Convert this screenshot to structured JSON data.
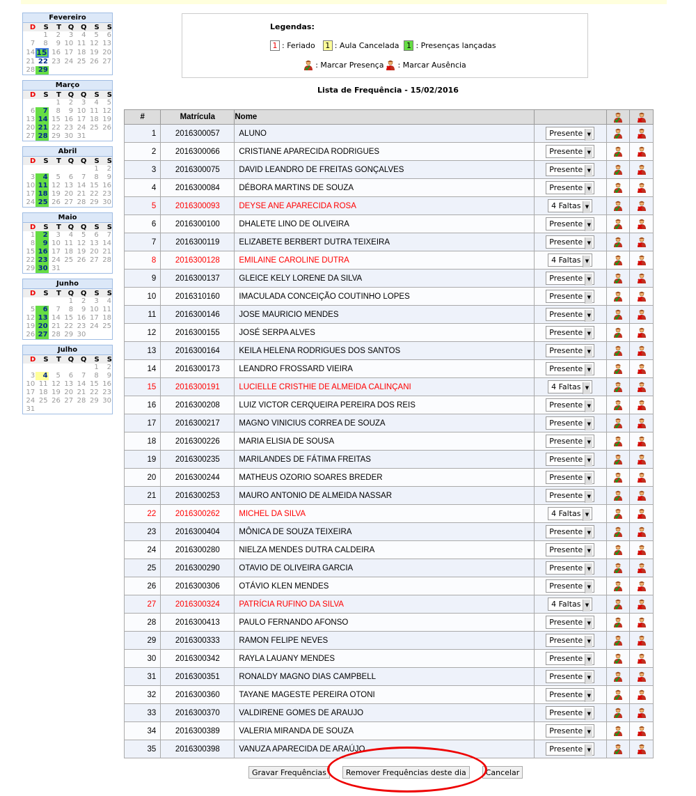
{
  "weekdays": [
    "D",
    "S",
    "T",
    "Q",
    "Q",
    "S",
    "S"
  ],
  "calendars": [
    {
      "month": "Fevereiro",
      "offset": 1,
      "days": 29,
      "green": [
        15,
        29
      ],
      "bold": [
        15,
        22,
        29
      ],
      "selected": 15,
      "yellow": []
    },
    {
      "month": "Março",
      "offset": 2,
      "days": 31,
      "green": [
        7,
        14,
        21,
        28
      ],
      "bold": [
        7,
        14,
        21,
        28
      ],
      "selected": null,
      "yellow": []
    },
    {
      "month": "Abril",
      "offset": 5,
      "days": 30,
      "green": [
        4,
        11,
        18,
        25
      ],
      "bold": [
        4,
        11,
        18,
        25
      ],
      "selected": null,
      "yellow": []
    },
    {
      "month": "Maio",
      "offset": 0,
      "days": 31,
      "green": [
        2,
        9,
        16,
        23,
        30
      ],
      "bold": [
        2,
        9,
        16,
        23,
        30
      ],
      "selected": null,
      "yellow": []
    },
    {
      "month": "Junho",
      "offset": 3,
      "days": 30,
      "green": [
        6,
        13,
        20,
        27
      ],
      "bold": [
        6,
        13,
        20,
        27
      ],
      "selected": null,
      "yellow": []
    },
    {
      "month": "Julho",
      "offset": 5,
      "days": 31,
      "green": [],
      "bold": [
        4
      ],
      "selected": null,
      "yellow": [
        4
      ]
    }
  ],
  "legend": {
    "title": "Legendas:",
    "sample": "1",
    "feriado": ": Feriado",
    "cancelada": ": Aula Cancelada",
    "lancadas": ": Presenças lançadas",
    "presenca": ": Marcar Presença",
    "ausencia": ": Marcar Ausência"
  },
  "list_title": "Lista de Frequência - 15/02/2016",
  "headers": {
    "num": "#",
    "matricula": "Matrícula",
    "nome": "Nome"
  },
  "colors": {
    "green": "#66dd44",
    "yellow": "#ffff99",
    "absent_text": "#ff0000"
  },
  "students": [
    [
      "1",
      "2016300057",
      "ALUNO",
      "Presente"
    ],
    [
      "2",
      "2016300066",
      "CRISTIANE APARECIDA RODRIGUES",
      "Presente"
    ],
    [
      "3",
      "2016300075",
      "DAVID LEANDRO DE FREITAS GONÇALVES",
      "Presente"
    ],
    [
      "4",
      "2016300084",
      "DÉBORA MARTINS DE SOUZA",
      "Presente"
    ],
    [
      "5",
      "2016300093",
      "DEYSE ANE APARECIDA ROSA",
      "4 Faltas"
    ],
    [
      "6",
      "2016300100",
      "DHALETE LINO DE OLIVEIRA",
      "Presente"
    ],
    [
      "7",
      "2016300119",
      "ELIZABETE BERBERT DUTRA TEIXEIRA",
      "Presente"
    ],
    [
      "8",
      "2016300128",
      "EMILAINE CAROLINE DUTRA",
      "4 Faltas"
    ],
    [
      "9",
      "2016300137",
      "GLEICE KELY LORENE DA SILVA",
      "Presente"
    ],
    [
      "10",
      "2016310160",
      "IMACULADA CONCEIÇÃO COUTINHO LOPES",
      "Presente"
    ],
    [
      "11",
      "2016300146",
      "JOSE MAURICIO MENDES",
      "Presente"
    ],
    [
      "12",
      "2016300155",
      "JOSÉ SERPA ALVES",
      "Presente"
    ],
    [
      "13",
      "2016300164",
      "KEILA HELENA RODRIGUES DOS SANTOS",
      "Presente"
    ],
    [
      "14",
      "2016300173",
      "LEANDRO FROSSARD VIEIRA",
      "Presente"
    ],
    [
      "15",
      "2016300191",
      "LUCIELLE CRISTHIE DE ALMEIDA CALINÇANI",
      "4 Faltas"
    ],
    [
      "16",
      "2016300208",
      "LUIZ VICTOR CERQUEIRA PEREIRA DOS REIS",
      "Presente"
    ],
    [
      "17",
      "2016300217",
      "MAGNO VINICIUS CORREA DE SOUZA",
      "Presente"
    ],
    [
      "18",
      "2016300226",
      "MARIA ELISIA DE SOUSA",
      "Presente"
    ],
    [
      "19",
      "2016300235",
      "MARILANDES DE FÁTIMA FREITAS",
      "Presente"
    ],
    [
      "20",
      "2016300244",
      "MATHEUS OZORIO SOARES BREDER",
      "Presente"
    ],
    [
      "21",
      "2016300253",
      "MAURO ANTONIO DE ALMEIDA NASSAR",
      "Presente"
    ],
    [
      "22",
      "2016300262",
      "MICHEL DA SILVA",
      "4 Faltas"
    ],
    [
      "23",
      "2016300404",
      "MÔNICA DE SOUZA TEIXEIRA",
      "Presente"
    ],
    [
      "24",
      "2016300280",
      "NIELZA MENDES DUTRA CALDEIRA",
      "Presente"
    ],
    [
      "25",
      "2016300290",
      "OTAVIO DE OLIVEIRA GARCIA",
      "Presente"
    ],
    [
      "26",
      "2016300306",
      "OTÁVIO KLEN MENDES",
      "Presente"
    ],
    [
      "27",
      "2016300324",
      "PATRÍCIA RUFINO DA SILVA",
      "4 Faltas"
    ],
    [
      "28",
      "2016300413",
      "PAULO FERNANDO AFONSO",
      "Presente"
    ],
    [
      "29",
      "2016300333",
      "RAMON FELIPE NEVES",
      "Presente"
    ],
    [
      "30",
      "2016300342",
      "RAYLA LAUANY MENDES",
      "Presente"
    ],
    [
      "31",
      "2016300351",
      "RONALDY MAGNO DIAS CAMPBELL",
      "Presente"
    ],
    [
      "32",
      "2016300360",
      "TAYANE MAGESTE PEREIRA OTONI",
      "Presente"
    ],
    [
      "33",
      "2016300370",
      "VALDIRENE GOMES DE ARAUJO",
      "Presente"
    ],
    [
      "34",
      "2016300389",
      "VALERIA MIRANDA DE SOUZA",
      "Presente"
    ],
    [
      "35",
      "2016300398",
      "VANUZA APARECIDA DE ARAÚJO",
      "Presente"
    ]
  ],
  "buttons": {
    "save": "Gravar Frequências",
    "remove": "Remover Frequências deste dia",
    "cancel": "Cancelar"
  }
}
